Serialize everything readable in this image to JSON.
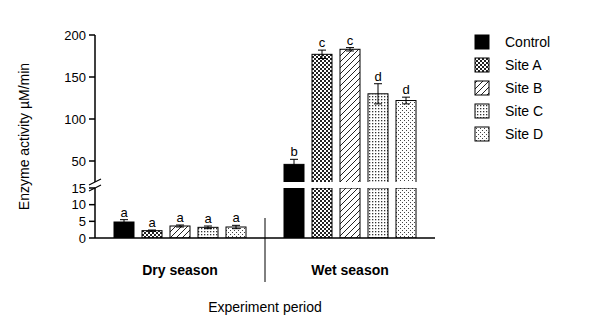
{
  "chart_data": {
    "type": "bar",
    "x_label": "Experiment period",
    "y_label": "Enzyme activity µM/min",
    "categories": [
      "Dry season",
      "Wet season"
    ],
    "series": [
      {
        "name": "Control",
        "color": "#000000",
        "values": [
          4.8,
          46
        ],
        "errors": [
          0.7,
          6
        ],
        "letters": [
          "a",
          "b"
        ]
      },
      {
        "name": "Site A",
        "color": "#ffffff",
        "values": [
          2.2,
          177
        ],
        "errors": [
          0.2,
          5
        ],
        "letters": [
          "a",
          "c"
        ]
      },
      {
        "name": "Site B",
        "color": "#ffffff",
        "values": [
          3.6,
          183
        ],
        "errors": [
          0.3,
          2
        ],
        "letters": [
          "a",
          "c"
        ]
      },
      {
        "name": "Site C",
        "color": "#ffffff",
        "values": [
          3.2,
          130
        ],
        "errors": [
          0.4,
          12
        ],
        "letters": [
          "a",
          "d"
        ]
      },
      {
        "name": "Site D",
        "color": "#ffffff",
        "values": [
          3.3,
          122
        ],
        "errors": [
          0.5,
          4
        ],
        "letters": [
          "a",
          "d"
        ]
      }
    ],
    "ylim": [
      0,
      200
    ],
    "y_break": [
      15,
      25
    ],
    "yticks": [
      0,
      5,
      10,
      15,
      50,
      100,
      150,
      200
    ],
    "legend": "right"
  }
}
